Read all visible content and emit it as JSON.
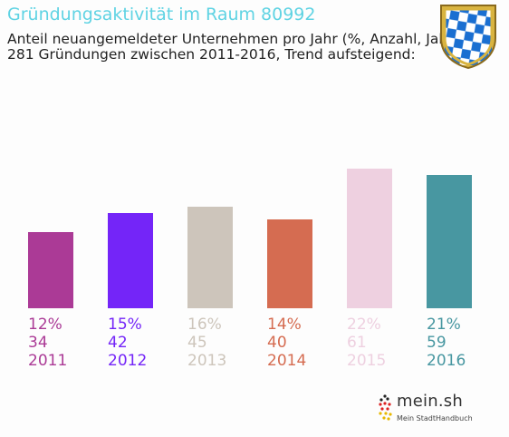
{
  "header": {
    "title": "Gründungsaktivität im Raum 80992",
    "subtitle_line1": "Anteil neuangemeldeter Unternehmen pro Jahr (%, Anzahl, Jahr)",
    "subtitle_line2": "281 Gründungen zwischen 2011-2016, Trend aufsteigend:"
  },
  "brand": {
    "name": "mein.sh",
    "tagline": "Mein StadtHandbuch"
  },
  "colors": {
    "title": "#5fd3e3",
    "bars": [
      "#ab3a96",
      "#7425f8",
      "#cdc5bb",
      "#d56c51",
      "#eed0e0",
      "#4897a1"
    ]
  },
  "chart_data": {
    "type": "bar",
    "categories": [
      "2011",
      "2012",
      "2013",
      "2014",
      "2015",
      "2016"
    ],
    "series": [
      {
        "values": [
          12,
          15,
          16,
          14,
          22,
          21
        ]
      },
      {
        "values": [
          34,
          42,
          45,
          40,
          61,
          59
        ]
      }
    ],
    "percent_labels": [
      "12%",
      "15%",
      "16%",
      "14%",
      "22%",
      "21%"
    ],
    "ylim": [
      0,
      22
    ],
    "grid": false,
    "legend": "none"
  }
}
